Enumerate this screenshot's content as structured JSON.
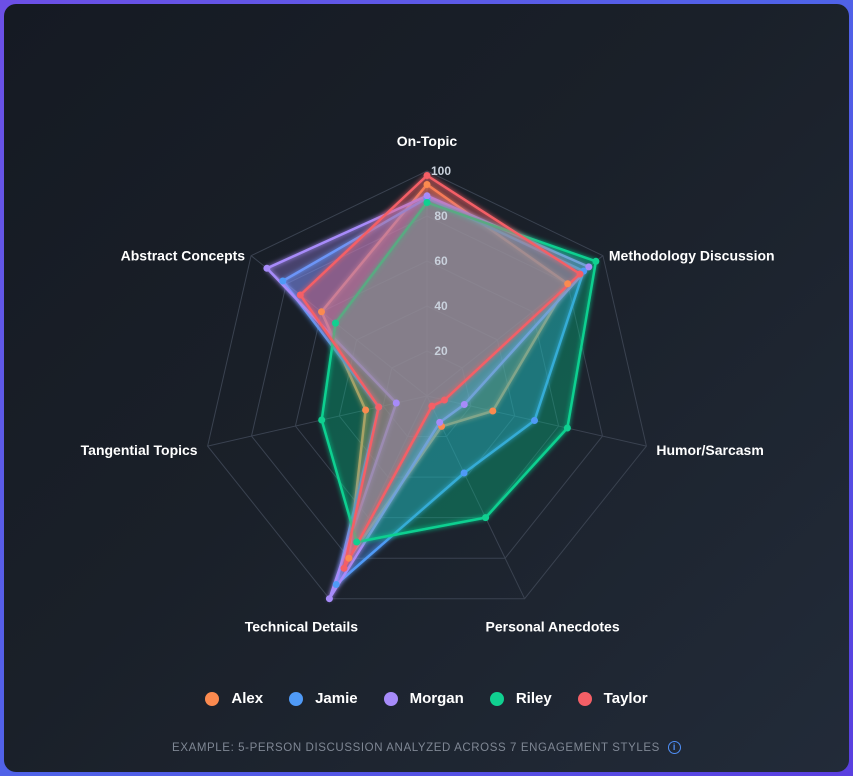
{
  "chart_data": {
    "type": "radar",
    "axes": [
      "On-Topic",
      "Methodology Discussion",
      "Humor/Sarcasm",
      "Personal Anecdotes",
      "Technical Details",
      "Tangential Topics",
      "Abstract Concepts"
    ],
    "range": [
      0,
      100
    ],
    "ticks": [
      20,
      40,
      60,
      80,
      100
    ],
    "grid": true,
    "series": [
      {
        "name": "Alex",
        "color": "#fb8a4f",
        "values": [
          94,
          80,
          30,
          15,
          80,
          28,
          60
        ]
      },
      {
        "name": "Jamie",
        "color": "#4f9af7",
        "values": [
          88,
          89,
          49,
          38,
          93,
          22,
          82
        ]
      },
      {
        "name": "Morgan",
        "color": "#a78bfa",
        "values": [
          89,
          92,
          17,
          13,
          100,
          14,
          91
        ]
      },
      {
        "name": "Riley",
        "color": "#10d090",
        "values": [
          86,
          96,
          64,
          60,
          72,
          48,
          52
        ]
      },
      {
        "name": "Taylor",
        "color": "#f45f66",
        "values": [
          98,
          87,
          8,
          5,
          85,
          22,
          72
        ]
      }
    ]
  },
  "legend": {
    "items": [
      {
        "label": "Alex",
        "color": "#fb8a4f"
      },
      {
        "label": "Jamie",
        "color": "#4f9af7"
      },
      {
        "label": "Morgan",
        "color": "#a78bfa"
      },
      {
        "label": "Riley",
        "color": "#10d090"
      },
      {
        "label": "Taylor",
        "color": "#f45f66"
      }
    ]
  },
  "caption": {
    "text": "EXAMPLE: 5-PERSON DISCUSSION ANALYZED ACROSS 7 ENGAGEMENT STYLES",
    "icon": "info-icon",
    "icon_glyph": "i"
  }
}
